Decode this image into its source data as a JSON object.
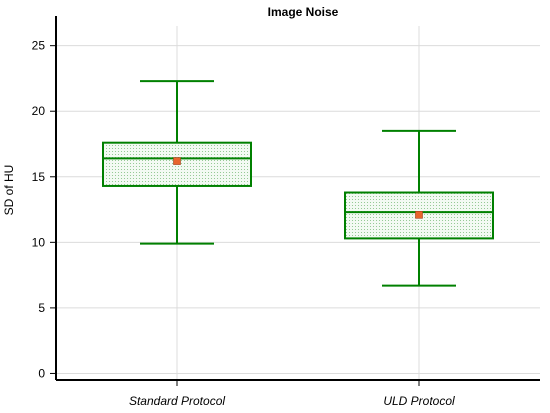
{
  "chart_data": {
    "type": "boxplot",
    "title": "Image Noise",
    "xlabel": "",
    "ylabel": "SD of HU",
    "ylim": [
      -0.5,
      26.5
    ],
    "yticks": [
      0,
      5,
      10,
      15,
      20,
      25
    ],
    "ytick_labels": [
      "0",
      "5",
      "10",
      "15",
      "20",
      "25"
    ],
    "grid": true,
    "categories": [
      "Standard Protocol",
      "ULD Protocol"
    ],
    "boxes": [
      {
        "category": "Standard Protocol",
        "whisker_low": 9.9,
        "q1": 14.3,
        "median": 16.4,
        "q3": 17.6,
        "whisker_high": 22.3,
        "mean": 16.2
      },
      {
        "category": "ULD Protocol",
        "whisker_low": 6.7,
        "q1": 10.3,
        "median": 12.3,
        "q3": 13.8,
        "whisker_high": 18.5,
        "mean": 12.1
      }
    ],
    "colors": {
      "box_edge": "#008000",
      "box_fill": "#e8f4e8",
      "mean_marker": "#e8642c",
      "mean_marker_edge": "#a0401c",
      "grid": "#dcdcdc",
      "axis": "#000000"
    }
  }
}
